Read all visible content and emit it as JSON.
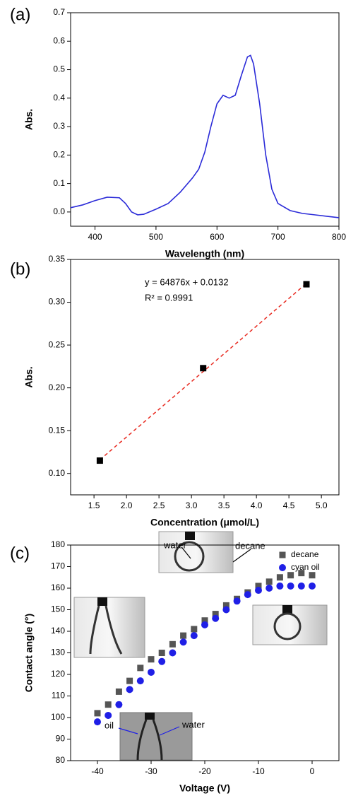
{
  "chart_data": [
    {
      "type": "line",
      "panel_label": "(a)",
      "x_label": "Wavelength (nm)",
      "y_label": "Abs.",
      "x": [
        360,
        380,
        400,
        420,
        440,
        450,
        460,
        470,
        480,
        500,
        520,
        540,
        560,
        570,
        580,
        590,
        600,
        610,
        620,
        630,
        640,
        650,
        655,
        660,
        670,
        680,
        690,
        700,
        720,
        740,
        760,
        780,
        800
      ],
      "values": [
        0.015,
        0.025,
        0.04,
        0.052,
        0.05,
        0.03,
        0.0,
        -0.01,
        -0.008,
        0.01,
        0.03,
        0.07,
        0.12,
        0.15,
        0.21,
        0.3,
        0.38,
        0.41,
        0.4,
        0.41,
        0.48,
        0.545,
        0.55,
        0.52,
        0.38,
        0.2,
        0.08,
        0.03,
        0.005,
        -0.005,
        -0.01,
        -0.015,
        -0.02
      ],
      "color": "#2b2bd8",
      "xlim": [
        360,
        800
      ],
      "xticks": [
        400,
        500,
        600,
        700,
        800
      ],
      "ylim": [
        -0.05,
        0.7
      ],
      "yticks": [
        {
          "value": 0,
          "label": "0.0"
        },
        0.1,
        0.2,
        0.3,
        0.4,
        0.5,
        0.6,
        0.7
      ]
    },
    {
      "type": "scatter",
      "panel_label": "(b)",
      "x_label": "Concentration (μmol/L)",
      "y_label": "Abs.",
      "x": [
        1.59,
        3.18,
        4.77
      ],
      "series": [
        {
          "values": [
            0.115,
            0.223,
            0.321
          ],
          "color": "#000000",
          "marker": "square"
        }
      ],
      "fit": {
        "x": [
          1.59,
          4.77
        ],
        "values": [
          0.116,
          0.322
        ],
        "color": "#e8291f"
      },
      "annotations": [
        "y = 64876x + 0.0132",
        "R² = 0.9991"
      ],
      "xlim": [
        1.14,
        5.27
      ],
      "xticks": [
        1.5,
        {
          "value": 2,
          "label": "2.0"
        },
        2.5,
        {
          "value": 3,
          "label": "3.0"
        },
        3.5,
        {
          "value": 4,
          "label": "4.0"
        },
        4.5,
        {
          "value": 5,
          "label": "5.0"
        }
      ],
      "ylim": [
        0.075,
        0.35
      ],
      "yticks": [
        {
          "value": 0.1,
          "label": "0.10"
        },
        0.15,
        {
          "value": 0.2,
          "label": "0.20"
        },
        0.25,
        {
          "value": 0.3,
          "label": "0.30"
        },
        0.35
      ]
    },
    {
      "type": "scatter",
      "panel_label": "(c)",
      "x_label": "Voltage (V)",
      "y_label": "Contact angle (°)",
      "x": [
        -40,
        -38,
        -36,
        -34,
        -32,
        -30,
        -28,
        -26,
        -24,
        -22,
        -20,
        -18,
        -16,
        -14,
        -12,
        -10,
        -8,
        -6,
        -4,
        -2,
        0
      ],
      "series": [
        {
          "name": "decane",
          "color": "#555555",
          "marker": "square",
          "values": [
            102,
            106,
            112,
            117,
            123,
            127,
            130,
            134,
            138,
            141,
            145,
            148,
            152,
            155,
            158,
            161,
            163,
            165,
            166,
            167,
            166
          ]
        },
        {
          "name": "cyan oil",
          "color": "#1f1fe6",
          "marker": "circle",
          "values": [
            98,
            101,
            106,
            113,
            117,
            121,
            126,
            130,
            135,
            138,
            143,
            146,
            150,
            154,
            157,
            159,
            160,
            161,
            161,
            161,
            161
          ]
        }
      ],
      "annotations": [
        "water",
        "decane",
        "oil",
        "water"
      ],
      "legend": "upper right",
      "xlim": [
        -45,
        5
      ],
      "xticks": [
        -40,
        -30,
        -20,
        -10,
        0
      ],
      "ylim": [
        80,
        180
      ],
      "yticks": [
        80,
        90,
        100,
        110,
        120,
        130,
        140,
        150,
        160,
        170,
        180
      ]
    }
  ]
}
